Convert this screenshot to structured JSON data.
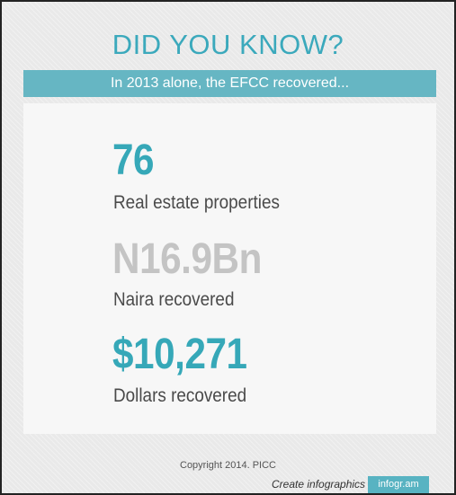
{
  "header": {
    "title": "DID YOU KNOW?",
    "subtitle": "In 2013 alone, the EFCC recovered..."
  },
  "stats": [
    {
      "value": "76",
      "label": "Real estate properties",
      "color": "#36a8b8"
    },
    {
      "value": "N16.9Bn",
      "label": "Naira recovered",
      "color": "#c4c4c4"
    },
    {
      "value": "$10,271",
      "label": "Dollars recovered",
      "color": "#36a8b8"
    }
  ],
  "footer": {
    "copyright": "Copyright 2014. PICC",
    "create_text": "Create infographics",
    "brand": "infogr.am"
  },
  "colors": {
    "accent": "#3ba9bc",
    "banner": "#66b6c3",
    "muted_value": "#c4c4c4",
    "card": "#f7f7f7",
    "background": "#e9e9e9"
  }
}
